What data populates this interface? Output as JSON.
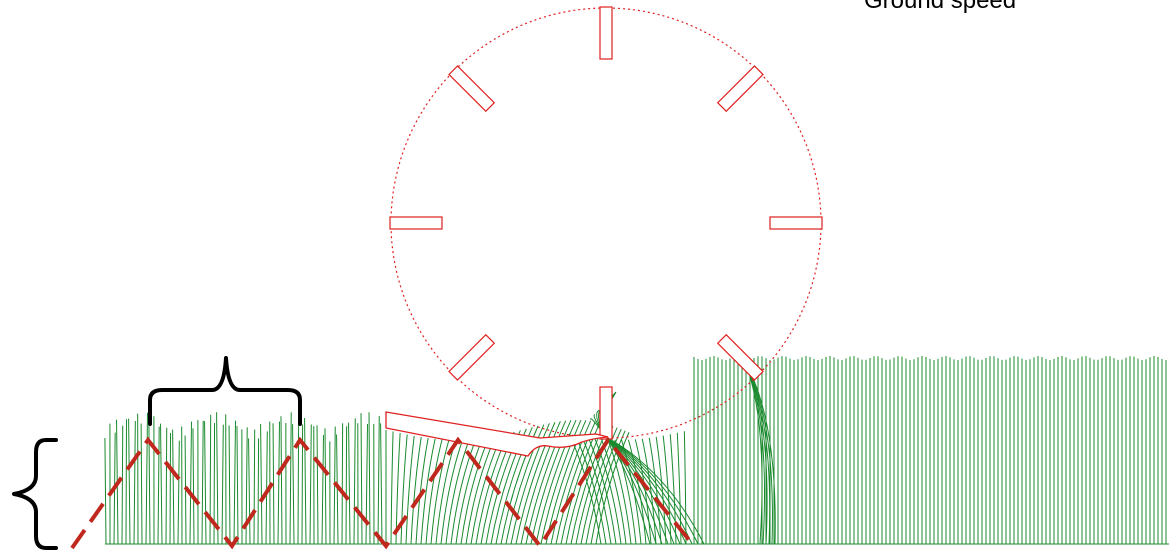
{
  "labels": {
    "ground_speed": "Ground speed"
  },
  "colors": {
    "stems": "#1a8a2e",
    "reel": "#e02020",
    "path": "#c0281e",
    "brace": "#000000",
    "background": "#ffffff"
  },
  "reel": {
    "bat_count": 8
  },
  "icons": {
    "length_brace": "curly-brace-vertical",
    "spacing_brace": "curly-brace-horizontal"
  }
}
